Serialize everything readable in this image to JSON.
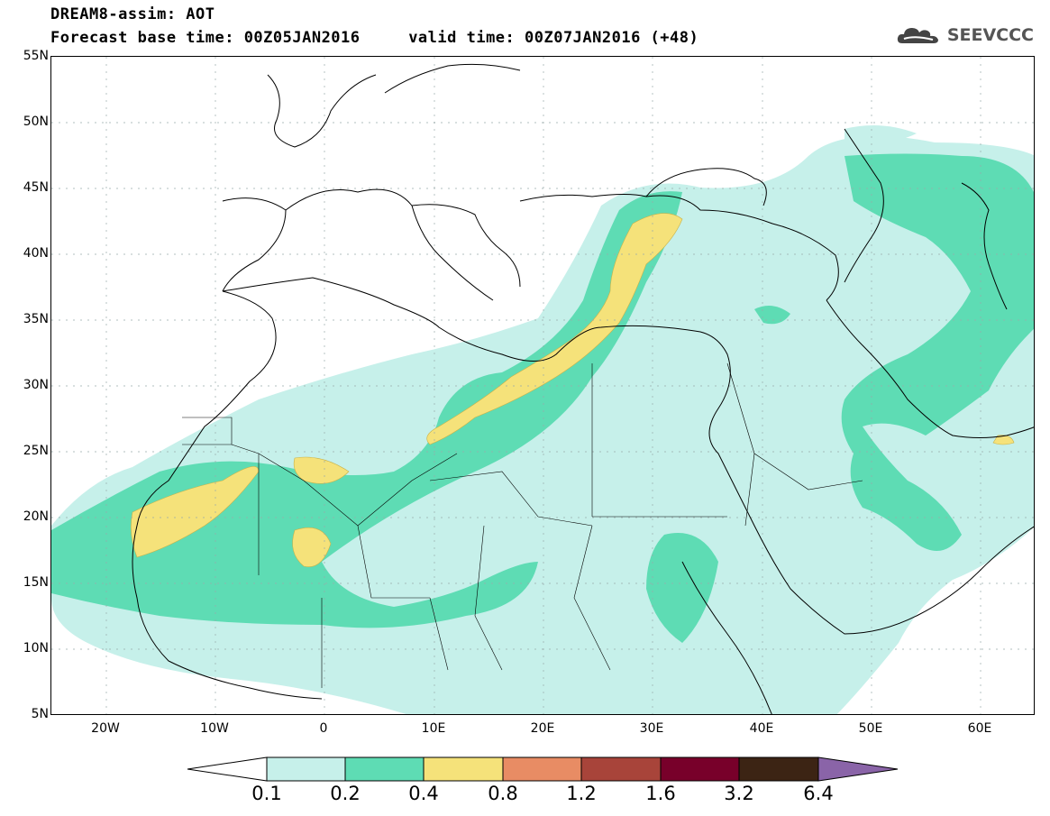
{
  "header": {
    "title_line1": "DREAM8-assim: AOT",
    "title_line2": "Forecast base time: 00Z05JAN2016     valid time: 00Z07JAN2016 (+48)",
    "logo_text": "SEEVCCC"
  },
  "axes": {
    "lat_labels": [
      "55N",
      "50N",
      "45N",
      "40N",
      "35N",
      "30N",
      "25N",
      "20N",
      "15N",
      "10N",
      "5N"
    ],
    "lon_labels": [
      "20W",
      "10W",
      "0",
      "10E",
      "20E",
      "30E",
      "40E",
      "50E",
      "60E"
    ]
  },
  "map": {
    "lon_range": [
      -25,
      65
    ],
    "lat_range": [
      5,
      55
    ],
    "field": "AOT"
  },
  "legend": {
    "levels": [
      "0.1",
      "0.2",
      "0.4",
      "0.8",
      "1.2",
      "1.6",
      "3.2",
      "6.4"
    ],
    "colors": [
      "#ffffff",
      "#c6f0ea",
      "#5edcb4",
      "#f5e27a",
      "#e88c64",
      "#a8443a",
      "#78002a",
      "#3c2414",
      "#8a64a8"
    ]
  }
}
